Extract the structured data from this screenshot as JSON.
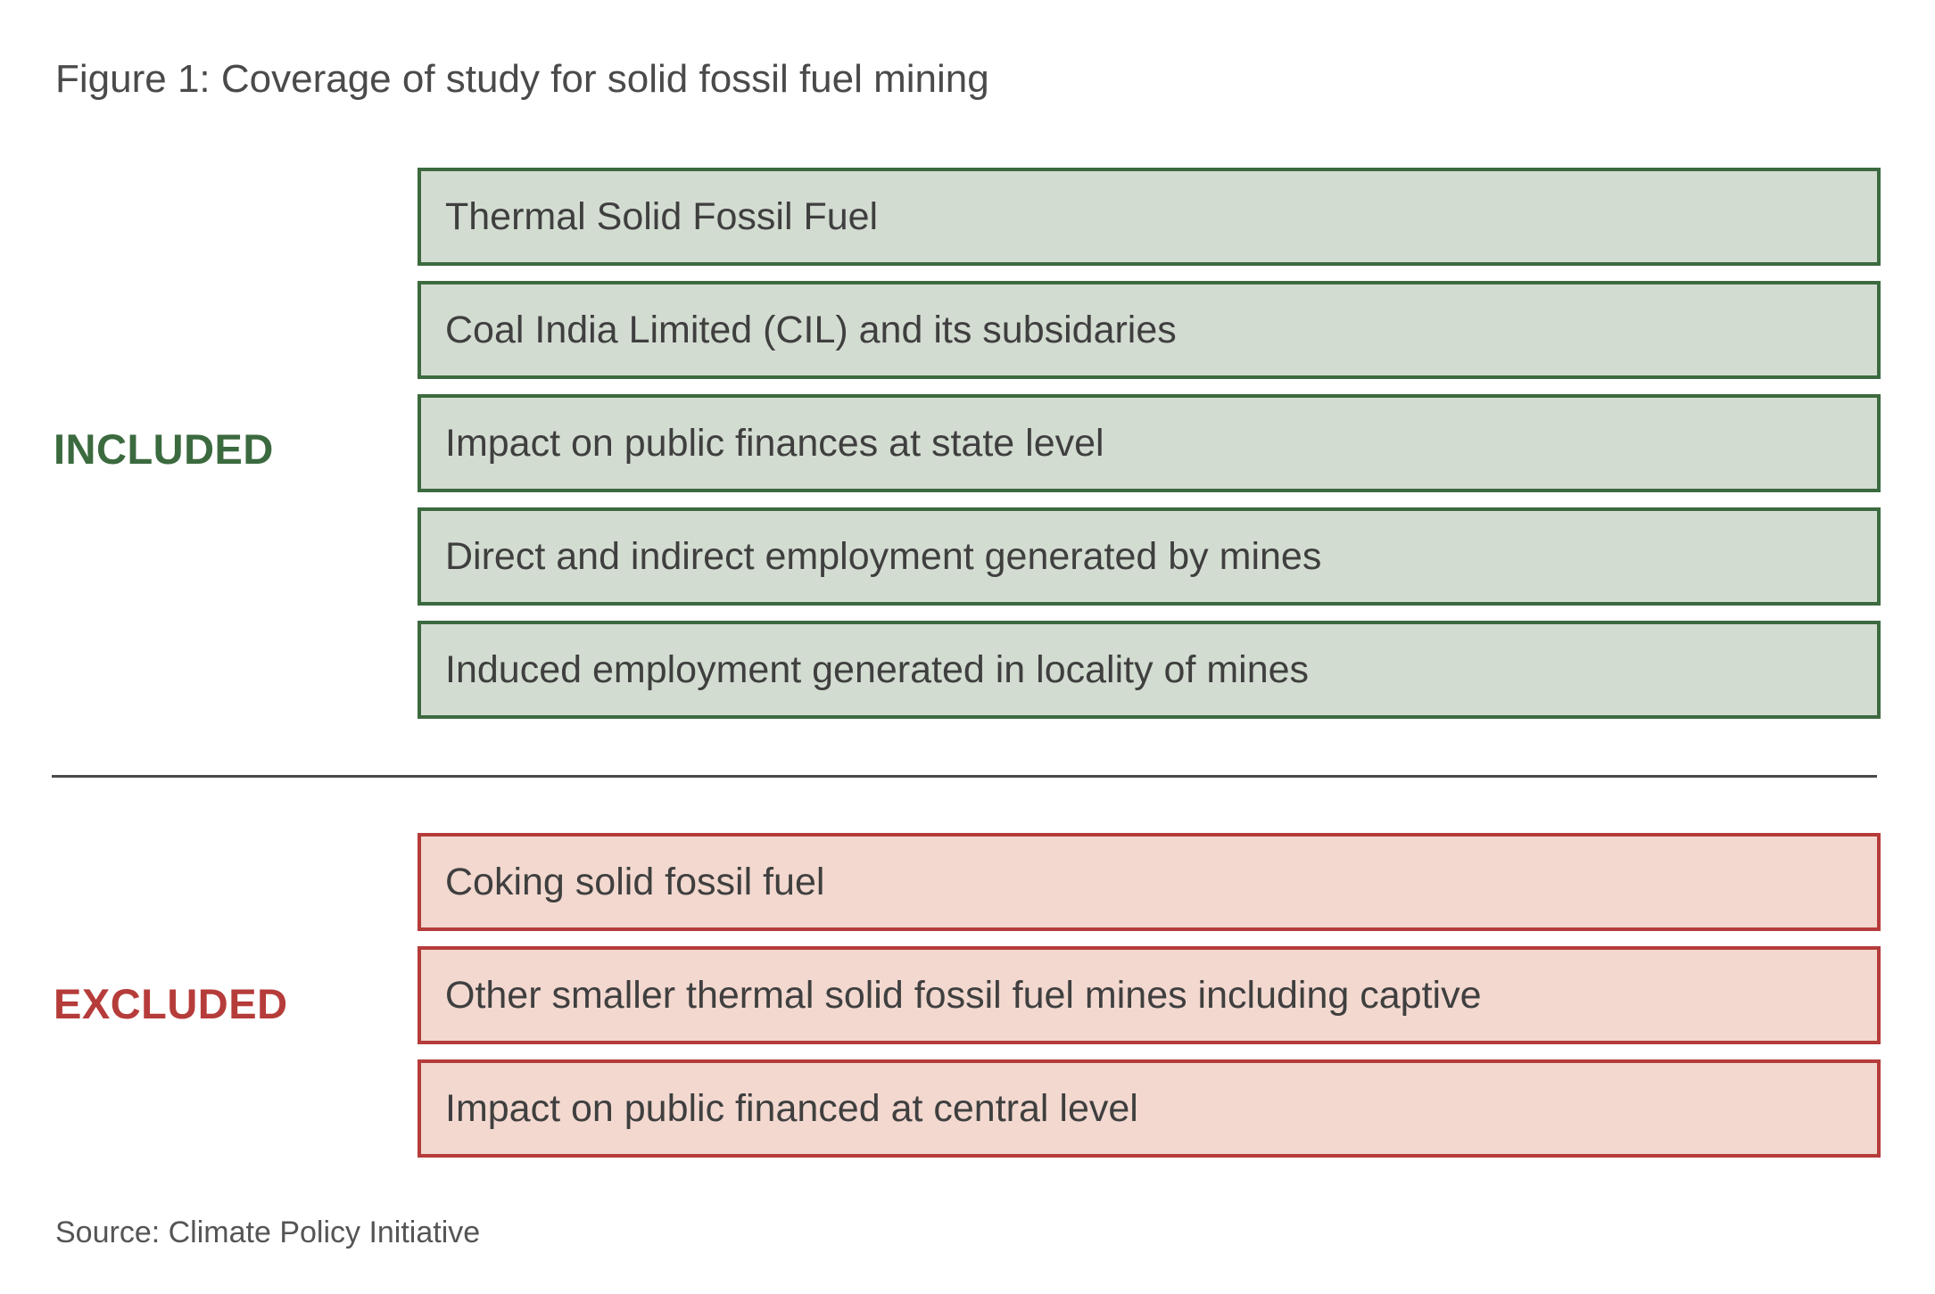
{
  "figure": {
    "title": "Figure 1: Coverage of study for solid fossil fuel mining",
    "source": "Source: Climate Policy Initiative"
  },
  "included": {
    "label": "INCLUDED",
    "color": "#3c6a3f",
    "fill": "#d3dcd1",
    "items": [
      "Thermal Solid Fossil Fuel",
      "Coal India Limited (CIL) and its subsidaries",
      "Impact on public finances at state level",
      "Direct and indirect employment generated by mines",
      "Induced employment generated in locality of mines"
    ]
  },
  "excluded": {
    "label": "EXCLUDED",
    "color": "#b53c3a",
    "fill": "#f2d8cf",
    "items": [
      "Coking solid fossil fuel",
      "Other smaller thermal solid fossil fuel mines including captive",
      "Impact on public financed at central level"
    ]
  }
}
